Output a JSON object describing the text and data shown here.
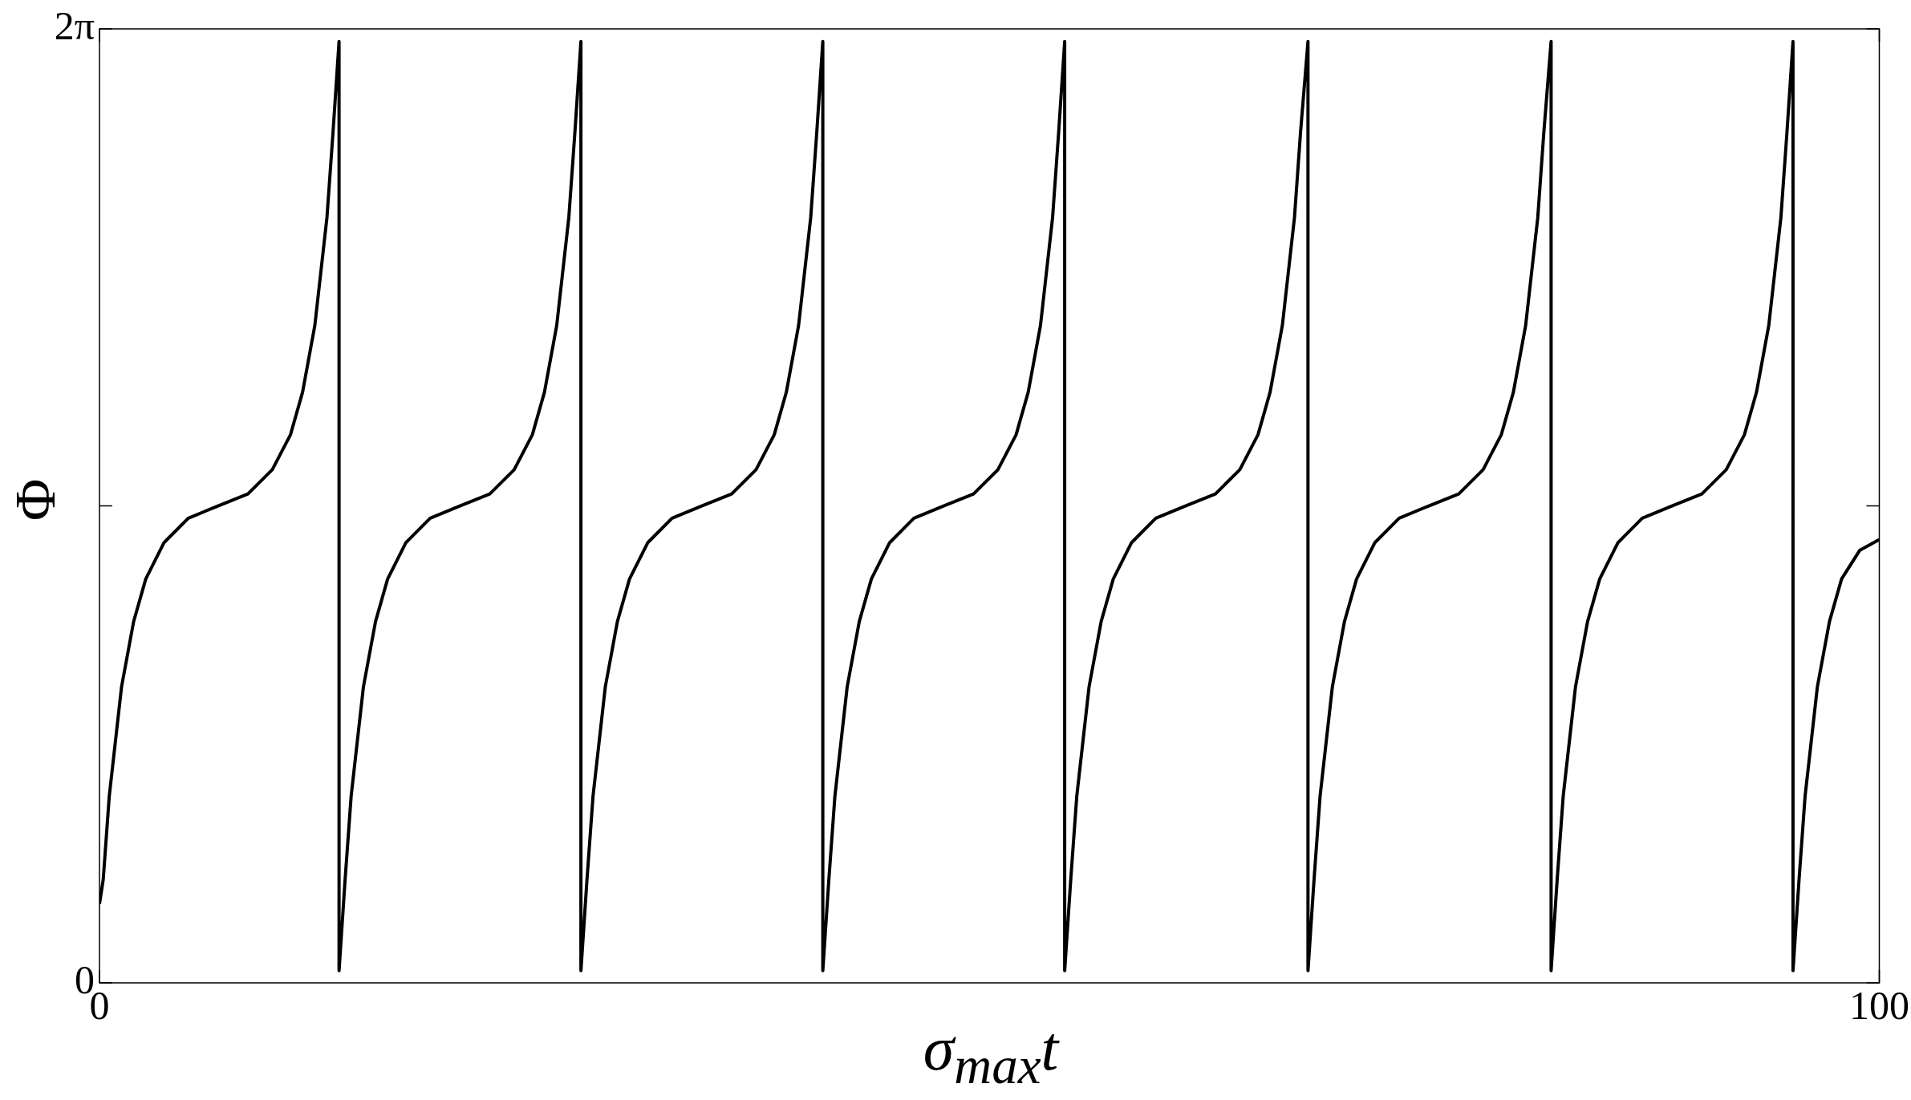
{
  "chart_data": {
    "type": "line",
    "xlabel": "σ$_{max}$t",
    "ylabel": "Φ",
    "xlim": [
      0,
      100
    ],
    "xticks": [
      0,
      100
    ],
    "ylim": [
      0,
      6.2832
    ],
    "yticks": [
      0,
      {
        "value": 3.1416,
        "label": null
      },
      {
        "value": 6.2832,
        "label": "2π"
      }
    ],
    "grid": false,
    "legend": false,
    "marker": "none",
    "line_style": "solid",
    "series": [
      {
        "color": "#000000",
        "x": [
          0,
          0.21,
          0.55,
          1.24,
          1.92,
          2.6,
          3.63,
          4.99,
          6.63,
          8.34,
          9.71,
          10.73,
          11.41,
          12.1,
          12.78,
          13.12,
          13.46,
          13.46,
          13.8,
          14.14,
          14.83,
          15.51,
          16.19,
          17.22,
          18.58,
          20.22,
          21.93,
          23.3,
          24.32,
          25.0,
          25.69,
          26.37,
          26.71,
          27.05,
          27.05,
          27.39,
          27.73,
          28.42,
          29.1,
          29.78,
          30.81,
          32.17,
          33.81,
          35.52,
          36.89,
          37.91,
          38.59,
          39.28,
          39.96,
          40.3,
          40.64,
          40.64,
          40.98,
          41.32,
          42.01,
          42.69,
          43.37,
          44.4,
          45.76,
          47.4,
          49.11,
          50.48,
          51.5,
          52.18,
          52.87,
          53.55,
          53.89,
          54.23,
          54.23,
          54.57,
          54.91,
          55.6,
          56.28,
          56.96,
          57.99,
          59.35,
          60.99,
          62.7,
          64.07,
          65.09,
          65.77,
          66.46,
          67.14,
          67.48,
          67.9,
          67.9,
          68.24,
          68.58,
          69.27,
          69.95,
          70.63,
          71.66,
          73.02,
          74.66,
          76.37,
          77.74,
          78.76,
          79.44,
          80.13,
          80.81,
          81.15,
          81.56,
          81.56,
          81.9,
          82.24,
          82.93,
          83.61,
          84.29,
          85.32,
          86.68,
          88.32,
          90.03,
          91.4,
          92.42,
          93.1,
          93.79,
          94.47,
          94.81,
          95.15,
          95.15,
          95.49,
          95.83,
          96.52,
          97.2,
          97.88,
          98.91,
          100
        ],
        "values": [
          0.52,
          0.68,
          1.23,
          1.95,
          2.38,
          2.66,
          2.9,
          3.06,
          3.14,
          3.22,
          3.38,
          3.61,
          3.89,
          4.33,
          5.04,
          5.6,
          6.2,
          0.08,
          0.68,
          1.23,
          1.95,
          2.38,
          2.66,
          2.9,
          3.06,
          3.14,
          3.22,
          3.38,
          3.61,
          3.89,
          4.33,
          5.04,
          5.6,
          6.2,
          0.08,
          0.68,
          1.23,
          1.95,
          2.38,
          2.66,
          2.9,
          3.06,
          3.14,
          3.22,
          3.38,
          3.61,
          3.89,
          4.33,
          5.04,
          5.6,
          6.2,
          0.08,
          0.68,
          1.23,
          1.95,
          2.38,
          2.66,
          2.9,
          3.06,
          3.14,
          3.22,
          3.38,
          3.61,
          3.89,
          4.33,
          5.04,
          5.6,
          6.2,
          0.08,
          0.68,
          1.23,
          1.95,
          2.38,
          2.66,
          2.9,
          3.06,
          3.14,
          3.22,
          3.38,
          3.61,
          3.89,
          4.33,
          5.04,
          5.6,
          6.2,
          0.08,
          0.68,
          1.23,
          1.95,
          2.38,
          2.66,
          2.9,
          3.06,
          3.14,
          3.22,
          3.38,
          3.61,
          3.89,
          4.33,
          5.04,
          5.6,
          6.2,
          0.08,
          0.68,
          1.23,
          1.95,
          2.38,
          2.66,
          2.9,
          3.06,
          3.14,
          3.22,
          3.38,
          3.61,
          3.89,
          4.33,
          5.04,
          5.6,
          6.2,
          0.08,
          0.68,
          1.23,
          1.95,
          2.38,
          2.66,
          2.85,
          2.92
        ]
      }
    ]
  }
}
